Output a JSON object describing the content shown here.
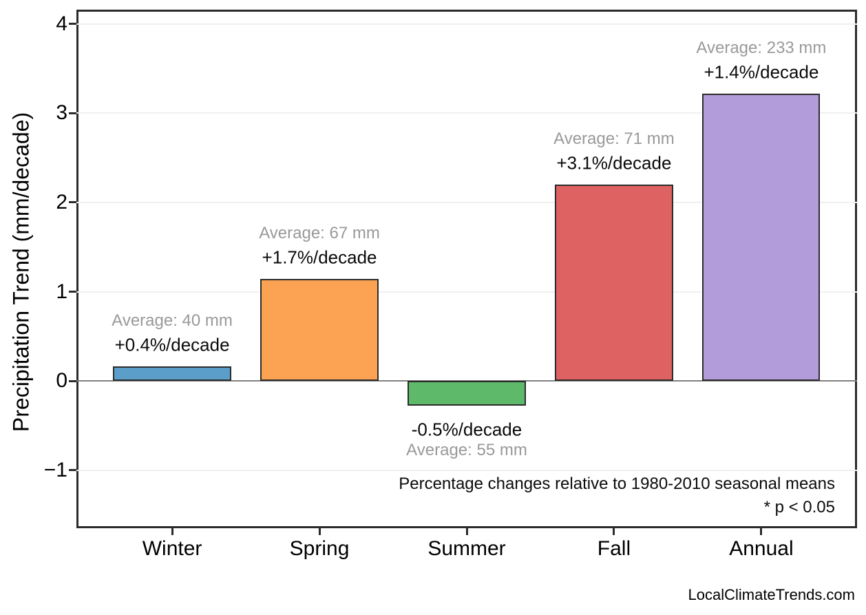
{
  "figure": {
    "background": "#ffffff",
    "watermark": "LocalClimateTrends.com"
  },
  "chart_data": {
    "type": "bar",
    "title": "",
    "xlabel": "",
    "ylabel": "Precipitation Trend (mm/decade)",
    "categories": [
      "Winter",
      "Spring",
      "Summer",
      "Fall",
      "Annual"
    ],
    "values": [
      0.16,
      1.14,
      -0.28,
      2.2,
      3.22
    ],
    "bar_colors": [
      "#5b9ec9",
      "#fba353",
      "#5eb96b",
      "#de6262",
      "#b29cd9"
    ],
    "bar_edge_color": "#2b2b2b",
    "bar_labels": [
      {
        "average": "Average: 40 mm",
        "trend": "+0.4%/decade"
      },
      {
        "average": "Average: 67 mm",
        "trend": "+1.7%/decade"
      },
      {
        "average": "Average: 55 mm",
        "trend": "-0.5%/decade"
      },
      {
        "average": "Average: 71 mm",
        "trend": "+3.1%/decade"
      },
      {
        "average": "Average: 233 mm",
        "trend": "+1.4%/decade"
      }
    ],
    "yticks": [
      -1,
      0,
      1,
      2,
      3,
      4
    ],
    "ytick_labels": [
      "−1",
      "0",
      "1",
      "2",
      "3",
      "4"
    ],
    "ylim": [
      -1.65,
      4.16
    ],
    "xlim": [
      -0.65,
      4.65
    ],
    "bar_width": 0.8,
    "grid": "horizontal-light",
    "gridline_color": "#f0f0f0",
    "zero_line_color": "#7f7f7f",
    "annotation_colors": {
      "average": "#999999",
      "trend": "#0a0a0a"
    },
    "annotations": [
      "Percentage changes relative to 1980-2010 seasonal means",
      "* p < 0.05"
    ],
    "legend": null
  }
}
